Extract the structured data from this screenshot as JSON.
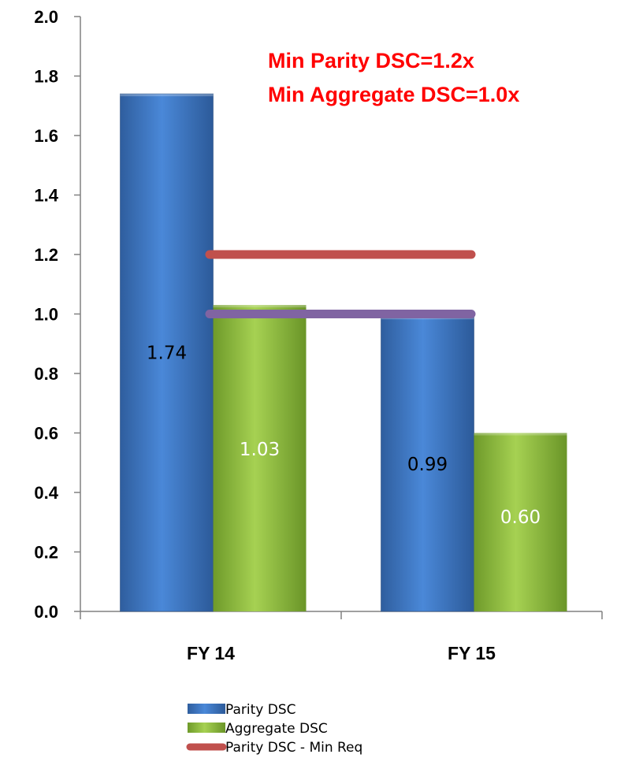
{
  "chart_data": {
    "type": "bar",
    "categories": [
      "FY 14",
      "FY 15"
    ],
    "series": [
      {
        "name": "Parity DSC",
        "values": [
          1.74,
          0.99
        ],
        "labels": [
          "1.74",
          "0.99"
        ],
        "color": "#3a74c4"
      },
      {
        "name": "Aggregate DSC",
        "values": [
          1.03,
          0.6
        ],
        "labels": [
          "1.03",
          "0.60"
        ],
        "color": "#8fbf3c"
      }
    ],
    "reference_lines": [
      {
        "name": "Parity DSC - Min Req",
        "value": 1.2,
        "color": "#c0504d"
      },
      {
        "value": 1.0,
        "color": "#8064a2"
      }
    ],
    "annotations": [
      "Min Parity DSC=1.2x",
      "Min Aggregate DSC=1.0x"
    ],
    "yticks": [
      "0.0",
      "0.2",
      "0.4",
      "0.6",
      "0.8",
      "1.0",
      "1.2",
      "1.4",
      "1.6",
      "1.8",
      "2.0"
    ],
    "ylim": [
      0,
      2.0
    ],
    "grid": false,
    "legend_position": "bottom"
  }
}
